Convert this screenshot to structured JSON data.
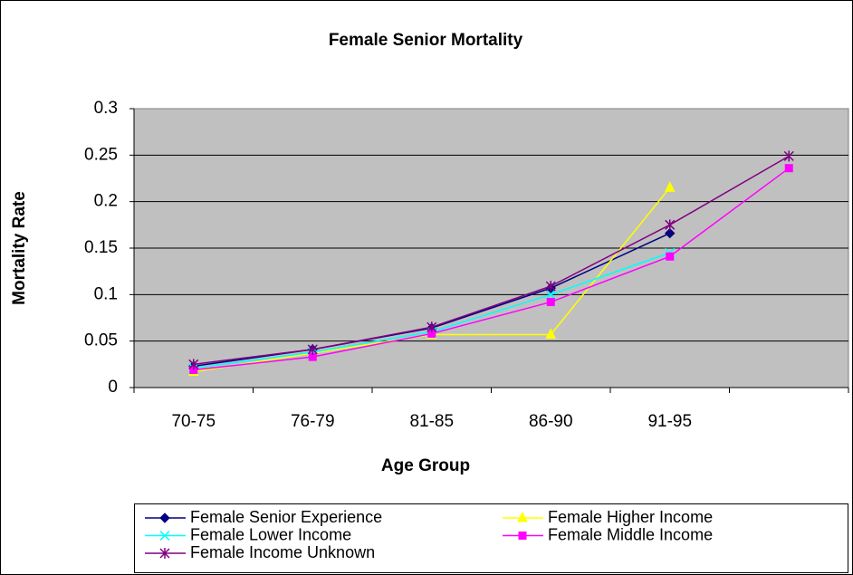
{
  "chart_data": {
    "type": "line",
    "title": "Female Senior Mortality",
    "x_label": "Age Group",
    "y_label": "Mortality Rate",
    "categories": [
      "70-75",
      "76-79",
      "81-85",
      "86-90",
      "91-95",
      null
    ],
    "series": [
      {
        "name": "Female Senior Experience",
        "color": "#000080",
        "marker": "diamond",
        "values": [
          0.023,
          0.041,
          0.064,
          0.107,
          0.166,
          null
        ]
      },
      {
        "name": "Female Higher Income",
        "color": "#ffff00",
        "marker": "triangle",
        "values": [
          0.017,
          0.037,
          0.057,
          0.057,
          0.215,
          null
        ]
      },
      {
        "name": "Female Lower Income",
        "color": "#00ffff",
        "marker": "x",
        "values": [
          0.021,
          0.038,
          0.06,
          0.1,
          0.145,
          null
        ]
      },
      {
        "name": "Female Middle Income",
        "color": "#ff00ff",
        "marker": "square",
        "values": [
          0.019,
          0.033,
          0.058,
          0.092,
          0.141,
          0.236
        ]
      },
      {
        "name": "Female Income Unknown",
        "color": "#800080",
        "marker": "asterisk",
        "values": [
          0.025,
          0.041,
          0.065,
          0.109,
          0.175,
          0.249
        ]
      }
    ],
    "ylim": [
      0,
      0.3
    ],
    "yticks": [
      0,
      0.05,
      0.1,
      0.15,
      0.2,
      0.25,
      0.3
    ],
    "grid": true,
    "legend": "bottom"
  }
}
